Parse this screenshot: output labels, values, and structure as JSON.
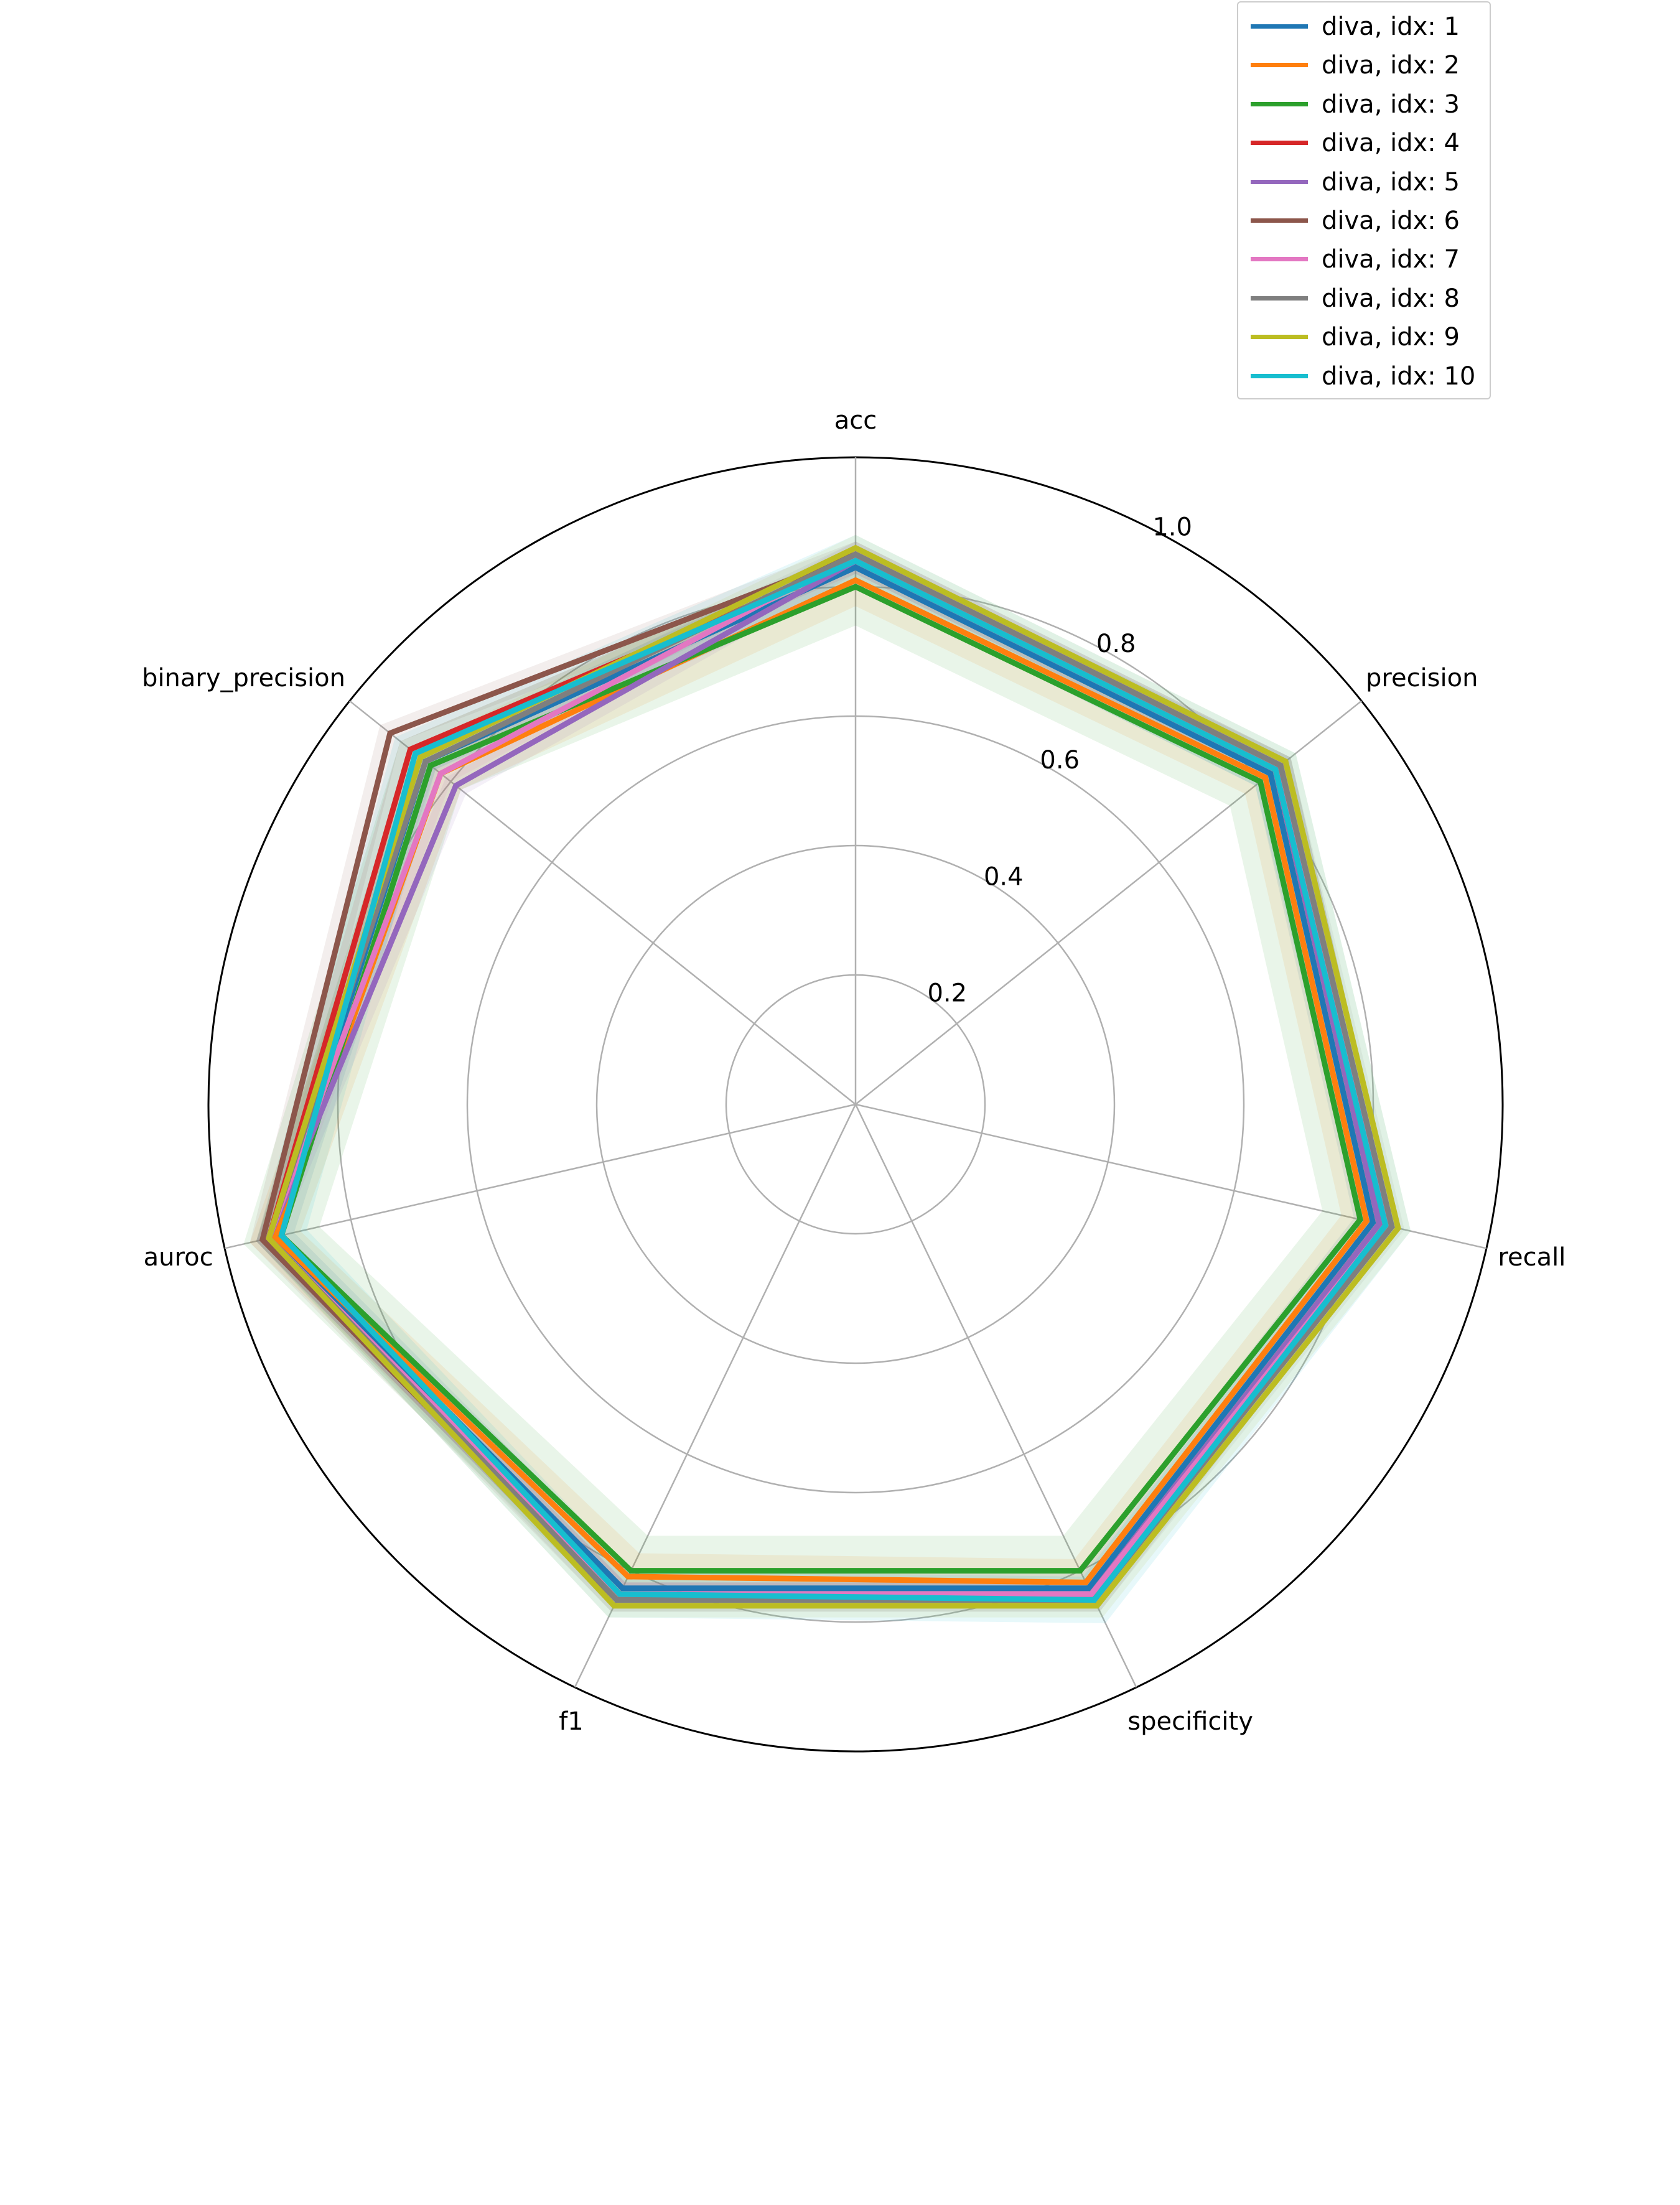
{
  "chart_data": {
    "type": "radar",
    "axes": [
      "acc",
      "precision",
      "recall",
      "specificity",
      "f1",
      "auroc",
      "binary_precision"
    ],
    "rlim": [
      0,
      1.0
    ],
    "radial_ticks": [
      "0.2",
      "0.4",
      "0.6",
      "0.8",
      "1.0"
    ],
    "radial_tick_values": [
      0.2,
      0.4,
      0.6,
      0.8,
      1.0
    ],
    "grid": true,
    "legend_position": "top-right",
    "series": [
      {
        "name": "diva, idx: 1",
        "color": "#1f77b4",
        "values": [
          0.83,
          0.82,
          0.82,
          0.83,
          0.83,
          0.92,
          0.85
        ],
        "band": 0.03
      },
      {
        "name": "diva, idx: 2",
        "color": "#ff7f0e",
        "values": [
          0.81,
          0.81,
          0.81,
          0.82,
          0.81,
          0.92,
          0.82
        ],
        "band": 0.04
      },
      {
        "name": "diva, idx: 3",
        "color": "#2ca02c",
        "values": [
          0.8,
          0.8,
          0.8,
          0.8,
          0.8,
          0.91,
          0.84
        ],
        "band": 0.06
      },
      {
        "name": "diva, idx: 4",
        "color": "#d62728",
        "values": [
          0.84,
          0.83,
          0.83,
          0.84,
          0.84,
          0.93,
          0.88
        ],
        "band": 0.02
      },
      {
        "name": "diva, idx: 5",
        "color": "#9467bd",
        "values": [
          0.84,
          0.83,
          0.83,
          0.84,
          0.84,
          0.93,
          0.79
        ],
        "band": 0.02
      },
      {
        "name": "diva, idx: 6",
        "color": "#8c564b",
        "values": [
          0.85,
          0.84,
          0.84,
          0.85,
          0.85,
          0.94,
          0.92
        ],
        "band": 0.02
      },
      {
        "name": "diva, idx: 7",
        "color": "#e377c2",
        "values": [
          0.85,
          0.84,
          0.84,
          0.84,
          0.84,
          0.93,
          0.82
        ],
        "band": 0.02
      },
      {
        "name": "diva, idx: 8",
        "color": "#7f7f7f",
        "values": [
          0.85,
          0.84,
          0.85,
          0.85,
          0.85,
          0.93,
          0.85
        ],
        "band": 0.02
      },
      {
        "name": "diva, idx: 9",
        "color": "#bcbd22",
        "values": [
          0.86,
          0.85,
          0.86,
          0.86,
          0.86,
          0.93,
          0.86
        ],
        "band": 0.02
      },
      {
        "name": "diva, idx: 10",
        "color": "#17becf",
        "values": [
          0.84,
          0.83,
          0.84,
          0.85,
          0.84,
          0.91,
          0.87
        ],
        "band": 0.04
      }
    ]
  }
}
